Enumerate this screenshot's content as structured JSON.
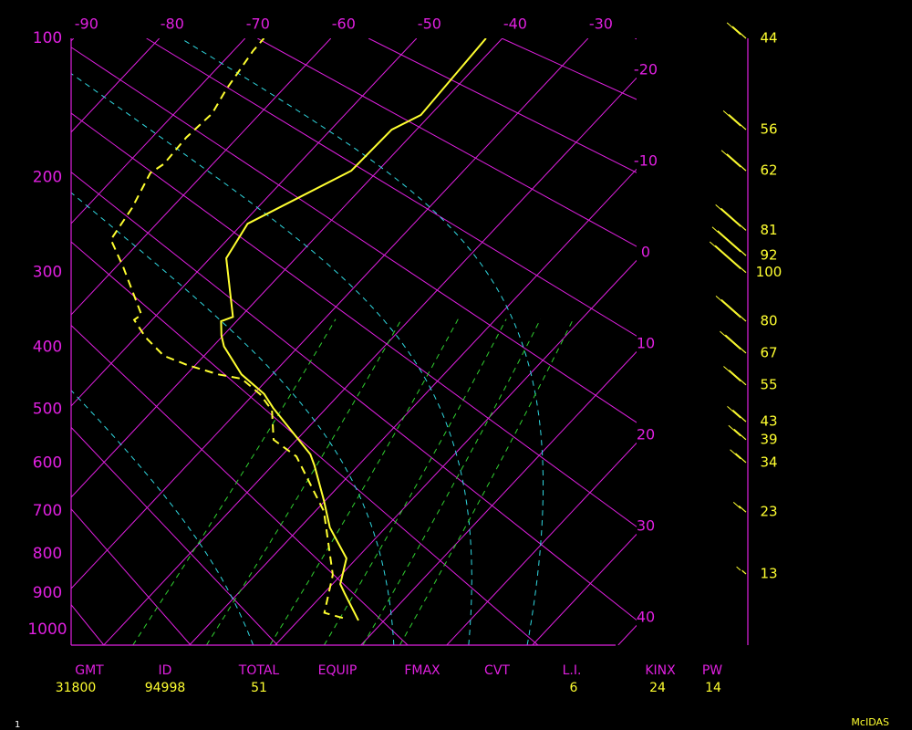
{
  "chart_data": {
    "type": "skew-t",
    "ylim": [
      100,
      1045
    ],
    "yticks": [
      100,
      200,
      300,
      400,
      500,
      600,
      700,
      800,
      900,
      1000
    ],
    "xlim": [
      -23.8,
      39.7
    ],
    "xticks": [
      -90,
      -80,
      -70,
      -60,
      -50,
      -40,
      -30
    ],
    "xticks_right": [
      -20,
      -10,
      0,
      10,
      20,
      30,
      40
    ],
    "dry_adiabats": [
      250,
      260,
      270,
      285,
      300,
      315,
      330,
      350,
      370,
      395,
      420,
      450,
      480
    ],
    "moist_adiabats": [
      -5,
      12,
      21,
      28
    ],
    "mixing_ratios": [
      1,
      2,
      3.5,
      5.5,
      7.5,
      10
    ],
    "grid_colors": {
      "isotherm": "#e020e0",
      "dry_adiabat": "#e020e0",
      "moist_adiabat": "#30d8e0",
      "mixing_ratio": "#30d030"
    },
    "series": [
      {
        "color": "#ffff30",
        "dashed": false,
        "pressure": [
          974,
          900,
          876,
          811,
          738,
          677,
          605,
          583,
          498,
          474,
          442,
          399,
          383,
          363,
          357,
          283,
          245,
          194,
          160,
          149,
          100
        ],
        "values": [
          7.0,
          2.4,
          0.9,
          -1.2,
          -6.5,
          -10.2,
          -15.1,
          -16.8,
          -26.2,
          -28.8,
          -33.6,
          -38.7,
          -40.2,
          -41.8,
          -40.9,
          -48.1,
          -49.4,
          -43.1,
          -42.9,
          -41.1,
          -41.9
        ]
      },
      {
        "color": "#ffff30",
        "dashed": true,
        "pressure": [
          967,
          953,
          852,
          701,
          587,
          555,
          502,
          474,
          449,
          442,
          427,
          413,
          386,
          361,
          354,
          293,
          262,
          229,
          196,
          188,
          166,
          148,
          131,
          107,
          100
        ],
        "values": [
          4.9,
          2.2,
          -1.0,
          -9.0,
          -18.2,
          -22.7,
          -26.1,
          -29.3,
          -33.1,
          -36.3,
          -41.0,
          -44.7,
          -48.8,
          -52.1,
          -51.8,
          -59.2,
          -63.6,
          -64.6,
          -66.3,
          -65.7,
          -66.0,
          -65.6,
          -66.6,
          -67.7,
          -67.8
        ]
      }
    ],
    "wind": {
      "color": "#ffff30",
      "pressure": [
        100,
        160,
        194,
        252,
        280,
        300,
        363,
        409,
        459,
        522,
        555,
        599,
        703,
        850
      ],
      "speed": [
        44,
        56,
        62,
        81,
        92,
        100,
        80,
        67,
        55,
        43,
        39,
        34,
        23,
        13
      ]
    }
  },
  "stats": [
    {
      "label": "GMT",
      "value": 31800
    },
    {
      "label": "ID",
      "value": 94998
    },
    {
      "label": "TOTAL",
      "value": 51
    },
    {
      "label": "EQUIP"
    },
    {
      "label": "FMAX"
    },
    {
      "label": "CVT"
    },
    {
      "label": "L.I.",
      "value": 6
    },
    {
      "label": "KINX",
      "value": 24
    },
    {
      "label": "PW",
      "value": 14
    }
  ],
  "footer": {
    "left": "1",
    "right": "McIDAS"
  }
}
